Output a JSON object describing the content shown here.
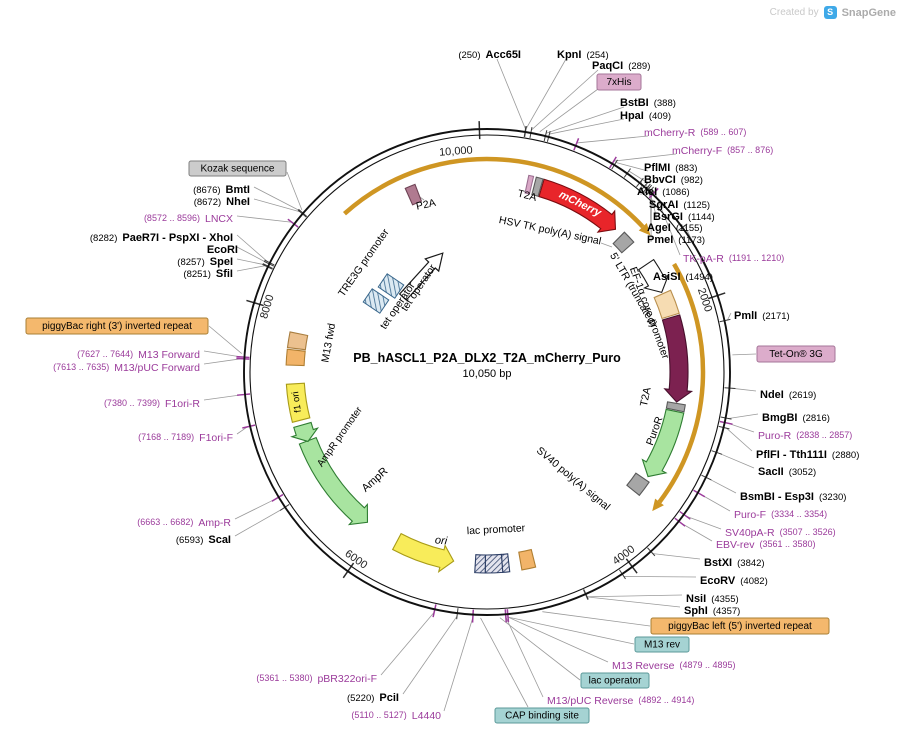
{
  "watermark": {
    "created_by": "Created by",
    "brand": "SnapGene"
  },
  "plasmid": {
    "name": "PB_hASCL1_P2A_DLX2_T2A_mCherry_Puro",
    "size": "10,050 bp"
  },
  "scale_ticks": [
    "10,000",
    "2000",
    "4000",
    "6000",
    "8000"
  ],
  "colors": {
    "primer_text": "#9b3b9b",
    "enzyme_text": "#000000",
    "leader_line": "#9a9a9a",
    "backbone": "#111111",
    "gold_arc": "#cf9623",
    "features": {
      "red": "#e8252a",
      "redBd": "#7a0c10",
      "gray": "#a6a6a6",
      "grayBd": "#595959",
      "pink": "#d9a7c6",
      "pinkBd": "#9b6f91",
      "mauve": "#b07a90",
      "mauveBd": "#6e4355",
      "white": "#ffffff",
      "whiteBd": "#1a1a1a",
      "peach": "#f6dcb2",
      "peachBd": "#b98f4d",
      "maroon": "#7c2150",
      "maroonBd": "#470f2c",
      "green": "#a8e4a0",
      "greenBd": "#2f7d32",
      "yellow": "#f8ec5a",
      "yellowBd": "#a89b17",
      "tan": "#ecc18f",
      "tanBd": "#a87d3f",
      "orange": "#f2b469",
      "orangeBd": "#b07f33"
    },
    "tags": {
      "pink": {
        "bg": "#dcaccb",
        "bd": "#a57699"
      },
      "orange": {
        "bg": "#f4b86d",
        "bd": "#a97f35"
      },
      "gray": {
        "bg": "#cccccc",
        "bd": "#7f7f7f"
      },
      "teal": {
        "bg": "#a5d3d3",
        "bd": "#5c9a9a"
      }
    }
  },
  "labels": {
    "acc65i": {
      "name": "Acc65I",
      "pos": "(250)"
    },
    "kpni": {
      "name": "KpnI",
      "pos": "(254)"
    },
    "paqci": {
      "name": "PaqCI",
      "pos": "(289)"
    },
    "bstbi": {
      "name": "BstBI",
      "pos": "(388)"
    },
    "hpai": {
      "name": "HpaI",
      "pos": "(409)"
    },
    "pflmi": {
      "name": "PflMI",
      "pos": "(883)"
    },
    "bbvci": {
      "name": "BbvCI",
      "pos": "(982)"
    },
    "alei": {
      "name": "AleI",
      "pos": "(1086)"
    },
    "sgrai": {
      "name": "SgrAI",
      "pos": "(1125)"
    },
    "bsrgi": {
      "name": "BsrGI",
      "pos": "(1144)"
    },
    "agei": {
      "name": "AgeI",
      "pos": "(1155)"
    },
    "pmei": {
      "name": "PmeI",
      "pos": "(1173)"
    },
    "asisi": {
      "name": "AsiSI",
      "pos": "(1494)"
    },
    "pmli": {
      "name": "PmlI",
      "pos": "(2171)"
    },
    "ndei": {
      "name": "NdeI",
      "pos": "(2619)"
    },
    "bmgbi": {
      "name": "BmgBI",
      "pos": "(2816)"
    },
    "pflfi": {
      "name": "PflFI - Tth111I",
      "pos": "(2880)"
    },
    "sacii": {
      "name": "SacII",
      "pos": "(3052)"
    },
    "bsmbi": {
      "name": "BsmBI - Esp3I",
      "pos": "(3230)"
    },
    "bstxi": {
      "name": "BstXI",
      "pos": "(3842)"
    },
    "ecorv": {
      "name": "EcoRV",
      "pos": "(4082)"
    },
    "nsii": {
      "name": "NsiI",
      "pos": "(4355)"
    },
    "sphi": {
      "name": "SphI",
      "pos": "(4357)"
    },
    "pcii": {
      "name": "PciI",
      "pos": "(5220)"
    },
    "scai": {
      "name": "ScaI",
      "pos": "(6593)"
    },
    "sfii": {
      "name": "SfiI",
      "pos": "(8251)"
    },
    "spei": {
      "name": "SpeI",
      "pos": "(8257)"
    },
    "ecori": {
      "name": "EcoRI",
      "pos": ""
    },
    "paer7i": {
      "name": "PaeR7I - PspXI - XhoI",
      "pos": "(8282)"
    },
    "nhei": {
      "name": "NheI",
      "pos": "(8672)"
    },
    "bmti": {
      "name": "BmtI",
      "pos": "(8676)"
    },
    "mcherry_r": {
      "name": "mCherry-R",
      "pos": "(589 .. 607)"
    },
    "mcherry_f": {
      "name": "mCherry-F",
      "pos": "(857 .. 876)"
    },
    "tk_pa_r": {
      "name": "TK-pA-R",
      "pos": "(1191 .. 1210)"
    },
    "puro_r": {
      "name": "Puro-R",
      "pos": "(2838 .. 2857)"
    },
    "puro_f": {
      "name": "Puro-F",
      "pos": "(3334 .. 3354)"
    },
    "sv40pa_r": {
      "name": "SV40pA-R",
      "pos": "(3507 .. 3526)"
    },
    "ebv_rev": {
      "name": "EBV-rev",
      "pos": "(3561 .. 3580)"
    },
    "m13_reverse": {
      "name": "M13 Reverse",
      "pos": "(4879 .. 4895)"
    },
    "m13puc_reverse": {
      "name": "M13/pUC Reverse",
      "pos": "(4892 .. 4914)"
    },
    "l4440": {
      "name": "L4440",
      "pos": "(5110 .. 5127)"
    },
    "pbr322ori_f": {
      "name": "pBR322ori-F",
      "pos": "(5361 .. 5380)"
    },
    "amp_r": {
      "name": "Amp-R",
      "pos": "(6663 .. 6682)"
    },
    "f1ori_f": {
      "name": "F1ori-F",
      "pos": "(7168 .. 7189)"
    },
    "f1ori_r": {
      "name": "F1ori-R",
      "pos": "(7380 .. 7399)"
    },
    "m13puc_forward": {
      "name": "M13/pUC Forward",
      "pos": "(7613 .. 7635)"
    },
    "m13_forward": {
      "name": "M13 Forward",
      "pos": "(7627 .. 7644)"
    },
    "lncx": {
      "name": "LNCX",
      "pos": "(8572 .. 8596)"
    },
    "his7": {
      "name": "7xHis"
    },
    "teton3g_tag": {
      "name": "Tet-On® 3G"
    },
    "kozak": {
      "name": "Kozak sequence"
    },
    "pb_left": {
      "name": "piggyBac left (5') inverted repeat"
    },
    "pb_right": {
      "name": "piggyBac right (3') inverted repeat"
    },
    "m13rev_tag": {
      "name": "M13 rev"
    },
    "lacop_tag": {
      "name": "lac operator"
    },
    "cap_tag": {
      "name": "CAP binding site"
    },
    "p2a": {
      "name": "P2A"
    },
    "t2a_top": {
      "name": "T2A"
    },
    "mcherry_feat": {
      "name": "mCherry"
    },
    "hsvtk": {
      "name": "HSV TK poly(A) signal"
    },
    "tre3g": {
      "name": "TRE3G promoter"
    },
    "teto": {
      "name": "tet operator"
    },
    "m13fwd_feat": {
      "name": "M13 fwd"
    },
    "f1ori_feat": {
      "name": "f1 ori"
    },
    "amprprom": {
      "name": "AmpR promoter"
    },
    "ampr_feat": {
      "name": "AmpR"
    },
    "ori_feat": {
      "name": "ori"
    },
    "lacprom": {
      "name": "lac promoter"
    },
    "sv40pa_feat": {
      "name": "SV40 poly(A) signal"
    },
    "ltr5": {
      "name": "5' LTR (truncated)"
    },
    "ef1a": {
      "name": "EF-1α core promoter"
    },
    "t2a_right": {
      "name": "T2A"
    },
    "puror_feat": {
      "name": "PuroR"
    }
  }
}
